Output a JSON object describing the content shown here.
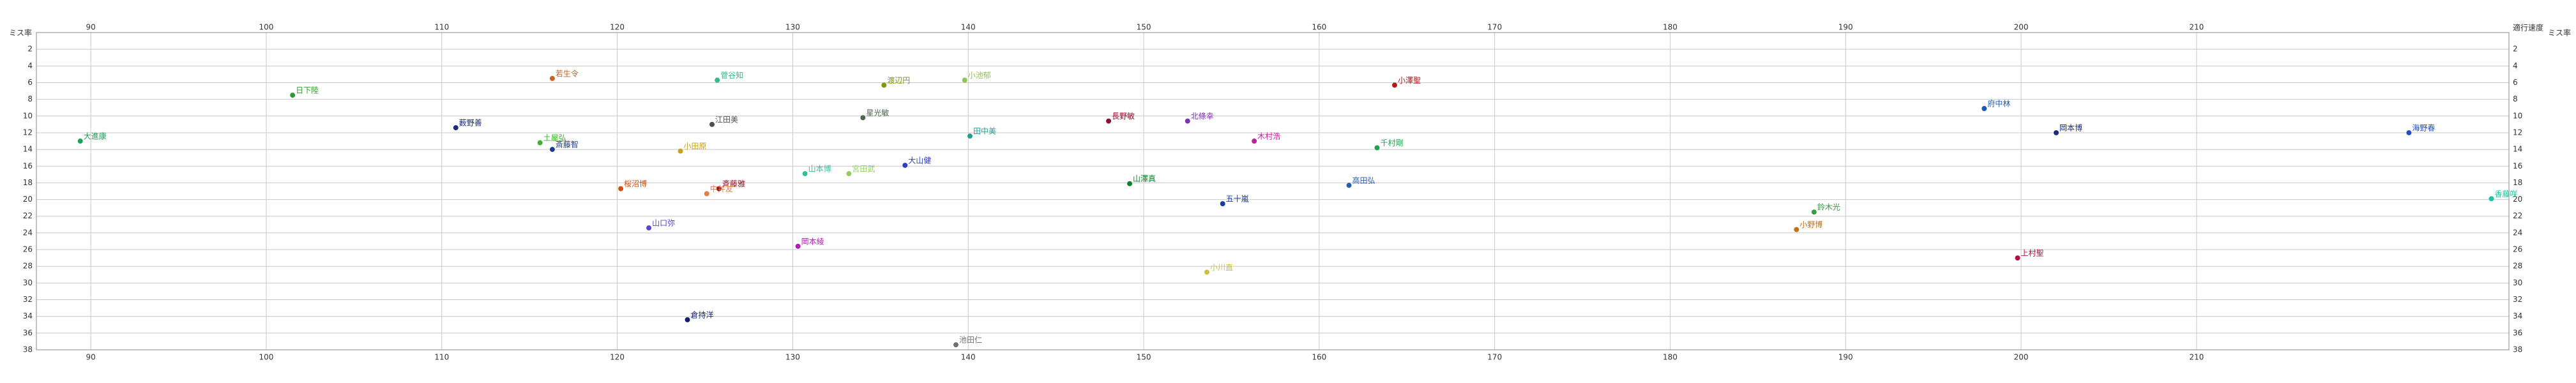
{
  "chart_data": {
    "type": "scatter",
    "x_label": "適行速度",
    "y_label": "ミス率",
    "xlim": [
      86.9,
      227.8
    ],
    "ylim": [
      0,
      38
    ],
    "xticks": [
      90,
      100,
      110,
      120,
      130,
      140,
      150,
      160,
      170,
      180,
      190,
      200,
      210
    ],
    "yticks": [
      2,
      4,
      6,
      8,
      10,
      12,
      14,
      16,
      18,
      20,
      22,
      24,
      26,
      28,
      30,
      32,
      34,
      36,
      38
    ],
    "y_inverted": true,
    "grid": true,
    "points": [
      {
        "label": "大進康",
        "x": 89.4,
        "y": 13.0,
        "color": "#1aa35a"
      },
      {
        "label": "日下陸",
        "x": 101.5,
        "y": 7.5,
        "color": "#2c9a2c"
      },
      {
        "label": "若生令",
        "x": 116.3,
        "y": 5.5,
        "color": "#c8641e"
      },
      {
        "label": "菅谷知",
        "x": 125.7,
        "y": 5.7,
        "color": "#38b88c"
      },
      {
        "label": "渡辺円",
        "x": 135.2,
        "y": 6.3,
        "color": "#7a9a10"
      },
      {
        "label": "小池郁",
        "x": 139.8,
        "y": 5.7,
        "color": "#8cc850"
      },
      {
        "label": "小澤聖",
        "x": 164.3,
        "y": 6.3,
        "color": "#b01c1c"
      },
      {
        "label": "府中林",
        "x": 197.9,
        "y": 9.1,
        "color": "#1c5ab0"
      },
      {
        "label": "薮野善",
        "x": 110.8,
        "y": 11.4,
        "color": "#1c2c78"
      },
      {
        "label": "江田美",
        "x": 125.4,
        "y": 11.0,
        "color": "#505050"
      },
      {
        "label": "星光敏",
        "x": 134.0,
        "y": 10.2,
        "color": "#506450"
      },
      {
        "label": "長野敏",
        "x": 148.0,
        "y": 10.6,
        "color": "#901030"
      },
      {
        "label": "北條幸",
        "x": 152.5,
        "y": 10.6,
        "color": "#8030b0"
      },
      {
        "label": "田中美",
        "x": 140.1,
        "y": 12.4,
        "color": "#20a090"
      },
      {
        "label": "木村浩",
        "x": 156.3,
        "y": 13.0,
        "color": "#c020a0"
      },
      {
        "label": "千村剛",
        "x": 163.3,
        "y": 13.8,
        "color": "#20a050"
      },
      {
        "label": "岡本博",
        "x": 202.0,
        "y": 12.0,
        "color": "#1c2c78"
      },
      {
        "label": "海野春",
        "x": 222.1,
        "y": 12.0,
        "color": "#2050c0"
      },
      {
        "label": "土屋弘",
        "x": 115.6,
        "y": 13.2,
        "color": "#40b030"
      },
      {
        "label": "斎藤智",
        "x": 116.3,
        "y": 14.0,
        "color": "#1c3c90"
      },
      {
        "label": "小田原",
        "x": 123.6,
        "y": 14.2,
        "color": "#c8a020"
      },
      {
        "label": "山本博",
        "x": 130.7,
        "y": 16.9,
        "color": "#30c0a0"
      },
      {
        "label": "宮田武",
        "x": 133.2,
        "y": 16.9,
        "color": "#90d060"
      },
      {
        "label": "大山健",
        "x": 136.4,
        "y": 15.9,
        "color": "#3040c0"
      },
      {
        "label": "桜沼博",
        "x": 120.2,
        "y": 18.7,
        "color": "#d05010"
      },
      {
        "label": "斉藤雅",
        "x": 125.8,
        "y": 18.7,
        "color": "#901020"
      },
      {
        "label": "中井友",
        "x": 125.1,
        "y": 19.3,
        "color": "#e08040"
      },
      {
        "label": "山澤真",
        "x": 149.2,
        "y": 18.1,
        "color": "#108030"
      },
      {
        "label": "高田弘",
        "x": 161.7,
        "y": 18.3,
        "color": "#2060b0"
      },
      {
        "label": "五十嵐",
        "x": 154.5,
        "y": 20.5,
        "color": "#1040a0"
      },
      {
        "label": "香藤咲",
        "x": 226.8,
        "y": 19.9,
        "color": "#20c0a0"
      },
      {
        "label": "鈴木光",
        "x": 188.2,
        "y": 21.5,
        "color": "#30a040"
      },
      {
        "label": "山口弥",
        "x": 121.8,
        "y": 23.4,
        "color": "#6040d0"
      },
      {
        "label": "小野博",
        "x": 187.2,
        "y": 23.6,
        "color": "#c07010"
      },
      {
        "label": "岡本綾",
        "x": 130.3,
        "y": 25.6,
        "color": "#b020b0"
      },
      {
        "label": "上村聖",
        "x": 199.8,
        "y": 27.0,
        "color": "#b01040"
      },
      {
        "label": "小川直",
        "x": 153.6,
        "y": 28.7,
        "color": "#d0c040"
      },
      {
        "label": "倉持洋",
        "x": 124.0,
        "y": 34.4,
        "color": "#102070"
      },
      {
        "label": "池田仁",
        "x": 139.3,
        "y": 37.4,
        "color": "#707070"
      }
    ]
  }
}
